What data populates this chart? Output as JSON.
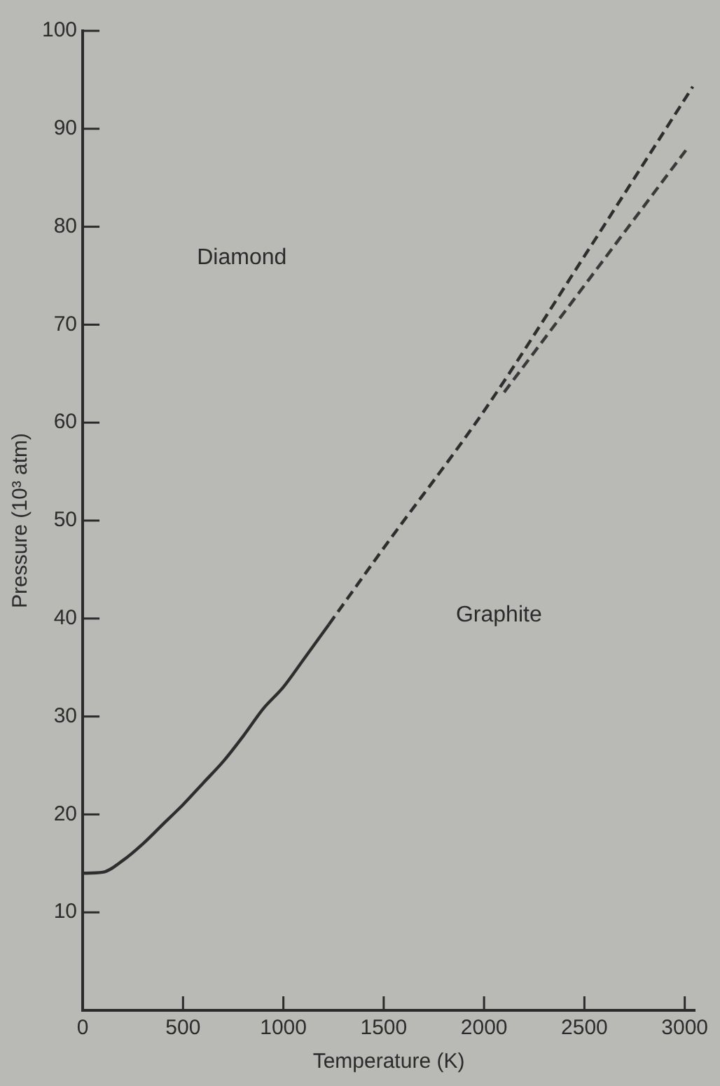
{
  "chart_data": {
    "type": "line",
    "xlabel": "Temperature (K)",
    "ylabel": "Pressure (10³ atm)",
    "xlim": [
      0,
      3050
    ],
    "xticks": [
      0,
      500,
      1000,
      1500,
      2000,
      2500,
      3000
    ],
    "ylim": [
      0,
      100
    ],
    "yticks": [
      {
        "value": 0,
        "label": null
      },
      10,
      20,
      30,
      40,
      50,
      60,
      70,
      80,
      90,
      100
    ],
    "grid": false,
    "legend": false,
    "marker": "none",
    "series": [
      {
        "color": "#2e2e2e",
        "line_style": "solid",
        "x": [
          0,
          100,
          200,
          300,
          400,
          500,
          600,
          700,
          800,
          900,
          1000,
          1100,
          1227
        ],
        "values": [
          14,
          14.1,
          15.3,
          17,
          19,
          21,
          23.2,
          25.4,
          28,
          30.8,
          33,
          35.8,
          39.4
        ]
      },
      {
        "color": "#2e2e2e",
        "line_style": "dashed",
        "x": [
          1227,
          1500,
          2000,
          2500,
          3040
        ],
        "values": [
          39.4,
          47.2,
          61.2,
          77,
          94.3
        ]
      },
      {
        "color": "#3a3a3a",
        "line_style": "dashed",
        "x": [
          2100,
          2500,
          3020
        ],
        "values": [
          63.1,
          74,
          88.2
        ]
      }
    ],
    "annotations": [
      "Diamond",
      "Graphite"
    ]
  }
}
